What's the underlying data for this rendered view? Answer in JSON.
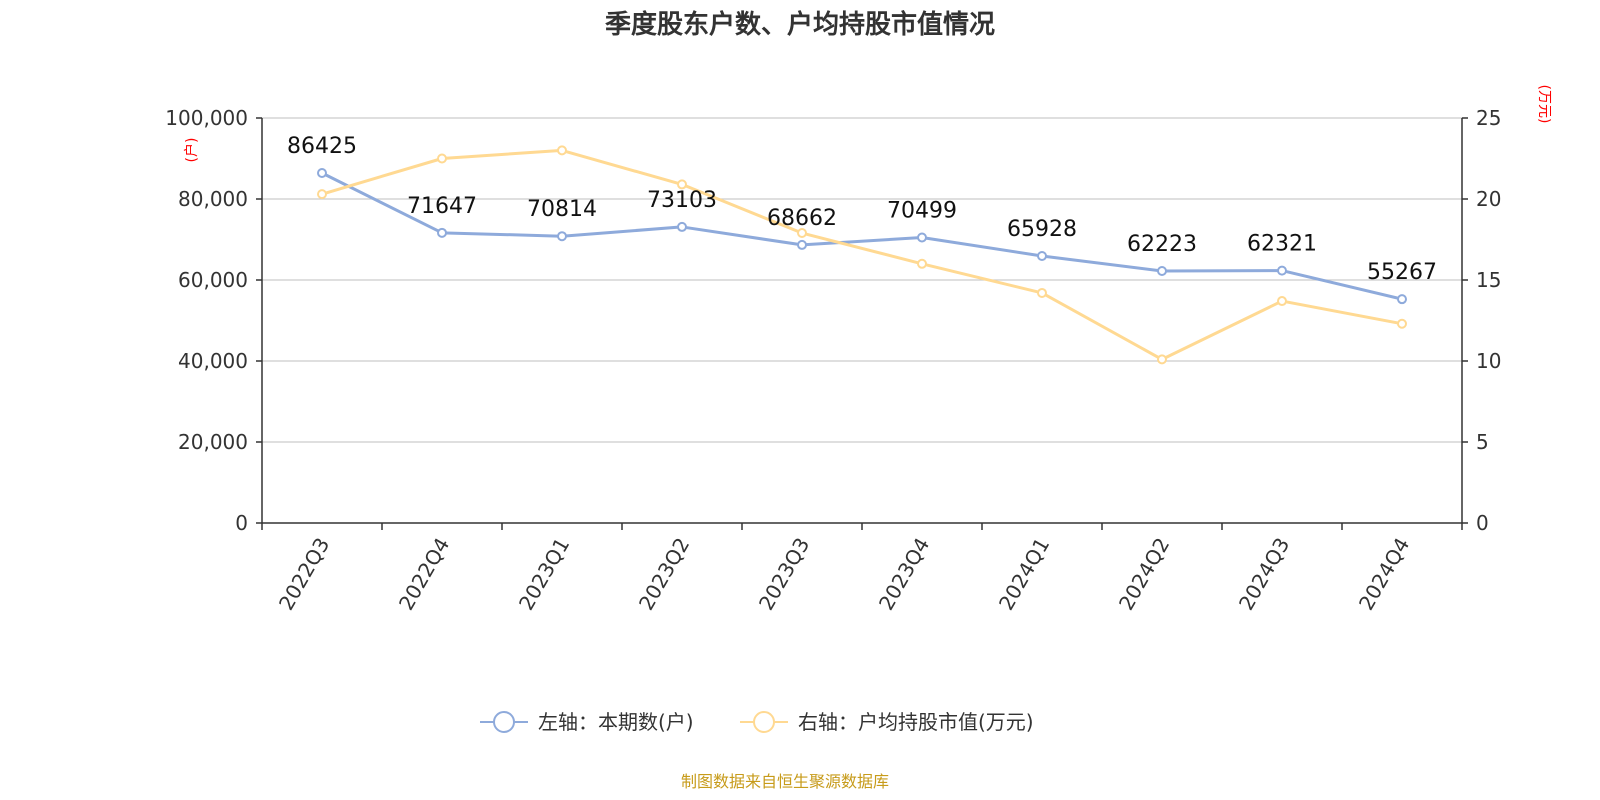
{
  "title": "季度股东户数、户均持股市值情况",
  "source": "制图数据来自恒生聚源数据库",
  "legend": [
    {
      "label": "左轴：本期数(户)",
      "color": "#8eaadb"
    },
    {
      "label": "右轴：户均持股市值(万元)",
      "color": "#ffd992"
    }
  ],
  "chart_data": {
    "type": "line",
    "title": "季度股东户数、户均持股市值情况",
    "categories": [
      "2022Q3",
      "2022Q4",
      "2023Q1",
      "2023Q2",
      "2023Q3",
      "2023Q4",
      "2024Q1",
      "2024Q2",
      "2024Q3",
      "2024Q4"
    ],
    "left_axis": {
      "unit": "(户)",
      "ylim": [
        0,
        100000
      ],
      "ticks": [
        0,
        20000,
        40000,
        60000,
        80000,
        100000
      ],
      "tick_labels": [
        "0",
        "20,000",
        "40,000",
        "60,000",
        "80,000",
        "100,000"
      ]
    },
    "right_axis": {
      "unit": "(万元)",
      "ylim": [
        0,
        25
      ],
      "ticks": [
        0,
        5,
        10,
        15,
        20,
        25
      ],
      "tick_labels": [
        "0",
        "5",
        "10",
        "15",
        "20",
        "25"
      ]
    },
    "series": [
      {
        "name": "左轴：本期数(户)",
        "axis": "left",
        "color": "#8eaadb",
        "values": [
          86425,
          71647,
          70814,
          73103,
          68662,
          70499,
          65928,
          62223,
          62321,
          55267
        ],
        "data_labels": [
          "86425",
          "71647",
          "70814",
          "73103",
          "68662",
          "70499",
          "65928",
          "62223",
          "62321",
          "55267"
        ]
      },
      {
        "name": "右轴：户均持股市值(万元)",
        "axis": "right",
        "color": "#ffd992",
        "values": [
          20.3,
          22.5,
          23.0,
          20.9,
          17.9,
          16.0,
          14.2,
          10.1,
          13.7,
          12.3
        ]
      }
    ],
    "grid": true,
    "legend_position": "bottom"
  }
}
